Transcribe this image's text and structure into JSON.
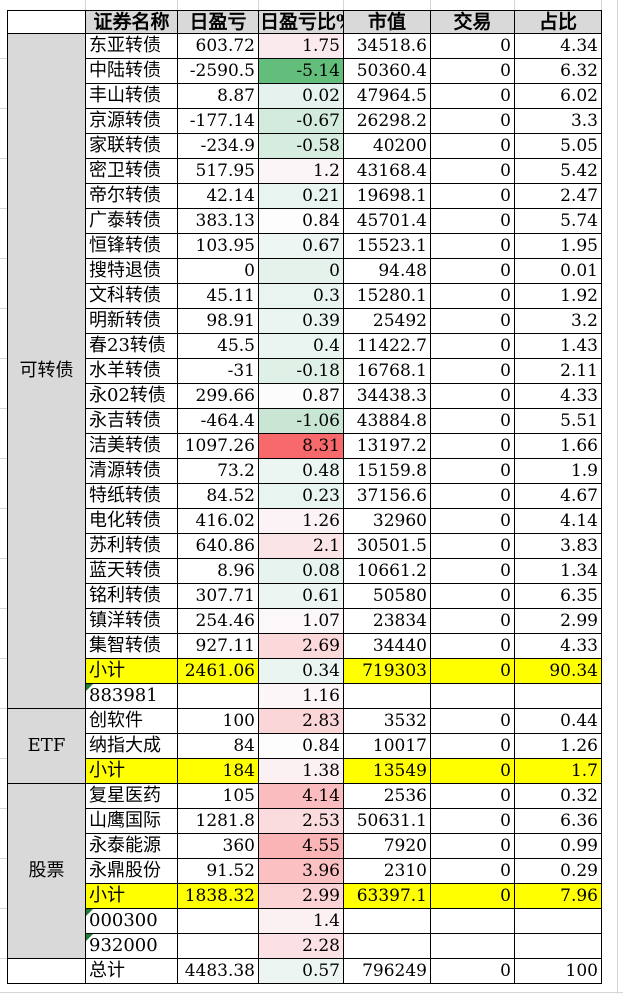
{
  "table": {
    "corner_label": "",
    "headers": [
      "证券名称",
      "日盈亏",
      "日盈亏比%",
      "市值",
      "交易",
      "占比"
    ],
    "groups": [
      {
        "label": "可转债",
        "rows": 27
      },
      {
        "label": "ETF",
        "rows": 3
      },
      {
        "label": "股票",
        "rows": 7
      },
      {
        "label": "",
        "rows": 1
      }
    ],
    "rows": [
      {
        "name": "东亚转债",
        "pnl": "603.72",
        "pct": "1.75",
        "mv": "34518.6",
        "trade": "0",
        "share": "4.34",
        "pct_color": "#fbeaed",
        "highlight": false,
        "flag": false
      },
      {
        "name": "中陆转债",
        "pnl": "-2590.5",
        "pct": "-5.14",
        "mv": "50360.4",
        "trade": "0",
        "share": "6.32",
        "pct_color": "#63be7b",
        "highlight": false,
        "flag": false
      },
      {
        "name": "丰山转债",
        "pnl": "8.87",
        "pct": "0.02",
        "mv": "47964.5",
        "trade": "0",
        "share": "6.02",
        "pct_color": "#e5f2ed",
        "highlight": false,
        "flag": false
      },
      {
        "name": "京源转债",
        "pnl": "-177.14",
        "pct": "-0.67",
        "mv": "26298.2",
        "trade": "0",
        "share": "3.3",
        "pct_color": "#d3ebdd",
        "highlight": false,
        "flag": false
      },
      {
        "name": "家联转债",
        "pnl": "-234.9",
        "pct": "-0.58",
        "mv": "40200",
        "trade": "0",
        "share": "5.05",
        "pct_color": "#d6ecdf",
        "highlight": false,
        "flag": false
      },
      {
        "name": "密卫转债",
        "pnl": "517.95",
        "pct": "1.2",
        "mv": "43168.4",
        "trade": "0",
        "share": "5.42",
        "pct_color": "#fcf5f7",
        "highlight": false,
        "flag": false
      },
      {
        "name": "帝尔转债",
        "pnl": "42.14",
        "pct": "0.21",
        "mv": "19698.1",
        "trade": "0",
        "share": "2.47",
        "pct_color": "#e8f4ef",
        "highlight": false,
        "flag": false
      },
      {
        "name": "广泰转债",
        "pnl": "383.13",
        "pct": "0.84",
        "mv": "45701.4",
        "trade": "0",
        "share": "5.74",
        "pct_color": "#fdfdfe",
        "highlight": false,
        "flag": false
      },
      {
        "name": "恒锋转债",
        "pnl": "103.95",
        "pct": "0.67",
        "mv": "15523.1",
        "trade": "0",
        "share": "1.95",
        "pct_color": "#eef6f3",
        "highlight": false,
        "flag": false
      },
      {
        "name": "搜特退债",
        "pnl": "0",
        "pct": "0",
        "mv": "94.48",
        "trade": "0",
        "share": "0.01",
        "pct_color": "#e5f2ec",
        "highlight": false,
        "flag": false
      },
      {
        "name": "文科转债",
        "pnl": "45.11",
        "pct": "0.3",
        "mv": "15280.1",
        "trade": "0",
        "share": "1.92",
        "pct_color": "#e9f4f0",
        "highlight": false,
        "flag": false
      },
      {
        "name": "明新转债",
        "pnl": "98.91",
        "pct": "0.39",
        "mv": "25492",
        "trade": "0",
        "share": "3.2",
        "pct_color": "#eaf5f1",
        "highlight": false,
        "flag": false
      },
      {
        "name": "春23转债",
        "pnl": "45.5",
        "pct": "0.4",
        "mv": "11422.7",
        "trade": "0",
        "share": "1.43",
        "pct_color": "#eaf5f1",
        "highlight": false,
        "flag": false
      },
      {
        "name": "水羊转债",
        "pnl": "-31",
        "pct": "-0.18",
        "mv": "16768.1",
        "trade": "0",
        "share": "2.11",
        "pct_color": "#dff0e7",
        "highlight": false,
        "flag": false
      },
      {
        "name": "永02转债",
        "pnl": "299.66",
        "pct": "0.87",
        "mv": "34438.3",
        "trade": "0",
        "share": "4.33",
        "pct_color": "#fdfcfd",
        "highlight": false,
        "flag": false
      },
      {
        "name": "永吉转债",
        "pnl": "-464.4",
        "pct": "-1.06",
        "mv": "43884.8",
        "trade": "0",
        "share": "5.51",
        "pct_color": "#c9e6d4",
        "highlight": false,
        "flag": false
      },
      {
        "name": "洁美转债",
        "pnl": "1097.26",
        "pct": "8.31",
        "mv": "13197.2",
        "trade": "0",
        "share": "1.66",
        "pct_color": "#f8696b",
        "highlight": false,
        "flag": false
      },
      {
        "name": "清源转债",
        "pnl": "73.2",
        "pct": "0.48",
        "mv": "15159.8",
        "trade": "0",
        "share": "1.9",
        "pct_color": "#ebf5f1",
        "highlight": false,
        "flag": false
      },
      {
        "name": "特纸转债",
        "pnl": "84.52",
        "pct": "0.23",
        "mv": "37156.6",
        "trade": "0",
        "share": "4.67",
        "pct_color": "#e8f4ef",
        "highlight": false,
        "flag": false
      },
      {
        "name": "电化转债",
        "pnl": "416.02",
        "pct": "1.26",
        "mv": "32960",
        "trade": "0",
        "share": "4.14",
        "pct_color": "#fbf3f5",
        "highlight": false,
        "flag": false
      },
      {
        "name": "苏利转债",
        "pnl": "640.86",
        "pct": "2.1",
        "mv": "30501.5",
        "trade": "0",
        "share": "3.83",
        "pct_color": "#fbe4e6",
        "highlight": false,
        "flag": false
      },
      {
        "name": "蓝天转债",
        "pnl": "8.96",
        "pct": "0.08",
        "mv": "10661.2",
        "trade": "0",
        "share": "1.34",
        "pct_color": "#e6f3ee",
        "highlight": false,
        "flag": false
      },
      {
        "name": "铭利转债",
        "pnl": "307.71",
        "pct": "0.61",
        "mv": "50580",
        "trade": "0",
        "share": "6.35",
        "pct_color": "#edf5f2",
        "highlight": false,
        "flag": false
      },
      {
        "name": "镇洋转债",
        "pnl": "254.46",
        "pct": "1.07",
        "mv": "23834",
        "trade": "0",
        "share": "2.99",
        "pct_color": "#fcf7f9",
        "highlight": false,
        "flag": false
      },
      {
        "name": "集智转债",
        "pnl": "927.11",
        "pct": "2.69",
        "mv": "34440",
        "trade": "0",
        "share": "4.33",
        "pct_color": "#fbd9db",
        "highlight": false,
        "flag": false
      },
      {
        "name": "小计",
        "pnl": "2461.06",
        "pct": "0.34",
        "mv": "719303",
        "trade": "0",
        "share": "90.34",
        "pct_color": "#eaf4f0",
        "highlight": true,
        "flag": false
      },
      {
        "name": "883981",
        "pnl": "",
        "pct": "1.16",
        "mv": "",
        "trade": "",
        "share": "",
        "pct_color": "#fcf6f8",
        "highlight": false,
        "flag": true
      },
      {
        "name": "创软件",
        "pnl": "100",
        "pct": "2.83",
        "mv": "3532",
        "trade": "0",
        "share": "0.44",
        "pct_color": "#fbd6d8",
        "highlight": false,
        "flag": false
      },
      {
        "name": "纳指大成",
        "pnl": "84",
        "pct": "0.84",
        "mv": "10017",
        "trade": "0",
        "share": "1.26",
        "pct_color": "#fdfdfe",
        "highlight": false,
        "flag": false
      },
      {
        "name": "小计",
        "pnl": "184",
        "pct": "1.38",
        "mv": "13549",
        "trade": "0",
        "share": "1.7",
        "pct_color": "#fbf1f3",
        "highlight": true,
        "flag": false
      },
      {
        "name": "复星医药",
        "pnl": "105",
        "pct": "4.14",
        "mv": "2536",
        "trade": "0",
        "share": "0.32",
        "pct_color": "#fabcbe",
        "highlight": false,
        "flag": false
      },
      {
        "name": "山鹰国际",
        "pnl": "1281.8",
        "pct": "2.53",
        "mv": "50631.1",
        "trade": "0",
        "share": "6.36",
        "pct_color": "#fbdcde",
        "highlight": false,
        "flag": false
      },
      {
        "name": "永泰能源",
        "pnl": "360",
        "pct": "4.55",
        "mv": "7920",
        "trade": "0",
        "share": "0.99",
        "pct_color": "#fab4b6",
        "highlight": false,
        "flag": false
      },
      {
        "name": "永鼎股份",
        "pnl": "91.52",
        "pct": "3.96",
        "mv": "2310",
        "trade": "0",
        "share": "0.29",
        "pct_color": "#fac0c2",
        "highlight": false,
        "flag": false
      },
      {
        "name": "小计",
        "pnl": "1838.32",
        "pct": "2.99",
        "mv": "63397.1",
        "trade": "0",
        "share": "7.96",
        "pct_color": "#fbd3d5",
        "highlight": true,
        "flag": false
      },
      {
        "name": "000300",
        "pnl": "",
        "pct": "1.4",
        "mv": "",
        "trade": "",
        "share": "",
        "pct_color": "#fbf1f3",
        "highlight": false,
        "flag": true
      },
      {
        "name": "932000",
        "pnl": "",
        "pct": "2.28",
        "mv": "",
        "trade": "",
        "share": "",
        "pct_color": "#fbe1e3",
        "highlight": false,
        "flag": true
      },
      {
        "name": "总计",
        "pnl": "4483.38",
        "pct": "0.57",
        "mv": "796249",
        "trade": "0",
        "share": "100",
        "pct_color": "#ecf5f2",
        "highlight": false,
        "flag": false
      }
    ]
  },
  "colors": {
    "header_bg": "#d9d9d9",
    "group_bg": "#d9d9d9",
    "highlight_bg": "#ffff00",
    "flag_triangle": "#1e7b34",
    "table_border": "#000000",
    "sheet_gridline": "#d6d6d6",
    "scale_negative_min": "#63be7b",
    "scale_midpoint": "#fcfcff",
    "scale_positive_max": "#f8696b"
  }
}
